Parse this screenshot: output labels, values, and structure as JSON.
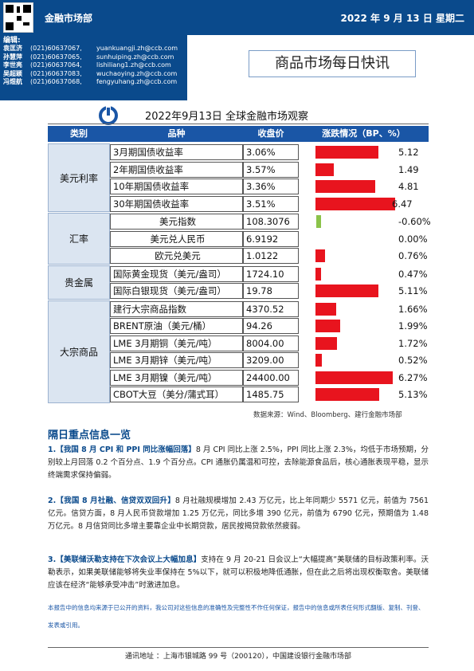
{
  "header": {
    "dept": "金融市场部",
    "date": "2022 年 9 月 13 日  星期二"
  },
  "editors": {
    "label": "编辑:",
    "list": [
      {
        "name": "袁匡济",
        "phone": "(021)60637067,",
        "email": "yuankuangji.zh@ccb.com"
      },
      {
        "name": "孙慧萍",
        "phone": "(021)60637065,",
        "email": "sunhuiping.zh@ccb.com"
      },
      {
        "name": "李世亮",
        "phone": "(021)60637064,",
        "email": "lishiliang1.zh@ccb.com"
      },
      {
        "name": "吴超颖",
        "phone": "(021)60637083,",
        "email": "wuchaoying.zh@ccb.com"
      },
      {
        "name": "冯煜航",
        "phone": "(021)60637068,",
        "email": "fengyuhang.zh@ccb.com"
      }
    ]
  },
  "title": "商品市场每日快讯",
  "table": {
    "title": "2022年9月13日 全球金融市场观察",
    "headers": [
      "类别",
      "品种",
      "收盘价",
      "涨跌情况（BP、%）"
    ],
    "colors": {
      "pos": "#e8141e",
      "neg": "#8bc34a"
    },
    "groups": [
      {
        "cat": "美元利率",
        "rows": [
          {
            "name": "3月期国债收益率",
            "close": "3.06%",
            "chg": "5.12",
            "val": 5.12
          },
          {
            "name": "2年期国债收益率",
            "close": "3.57%",
            "chg": "1.49",
            "val": 1.49
          },
          {
            "name": "10年期国债收益率",
            "close": "3.36%",
            "chg": "4.81",
            "val": 4.81
          },
          {
            "name": "30年期国债收益率",
            "close": "3.51%",
            "chg": "6.47",
            "val": 6.47
          }
        ]
      },
      {
        "cat": "汇率",
        "rows": [
          {
            "name": "美元指数",
            "close": "108.3076",
            "chg": "-0.60%",
            "val": -0.6
          },
          {
            "name": "美元兑人民币",
            "close": "6.9192",
            "chg": "0.00%",
            "val": 0.0
          },
          {
            "name": "欧元兑美元",
            "close": "1.0122",
            "chg": "0.76%",
            "val": 0.76
          }
        ]
      },
      {
        "cat": "贵金属",
        "rows": [
          {
            "name": "国际黄金现货（美元/盎司）",
            "close": "1724.10",
            "chg": "0.47%",
            "val": 0.47
          },
          {
            "name": "国际白银现货（美元/盎司）",
            "close": "19.78",
            "chg": "5.11%",
            "val": 5.11
          }
        ]
      },
      {
        "cat": "大宗商品",
        "rows": [
          {
            "name": "建行大宗商品指数",
            "close": "4370.52",
            "chg": "1.66%",
            "val": 1.66
          },
          {
            "name": "BRENT原油（美元/桶）",
            "close": "94.26",
            "chg": "1.99%",
            "val": 1.99
          },
          {
            "name": "LME 3月期铜（美元/吨）",
            "close": "8004.00",
            "chg": "1.72%",
            "val": 1.72
          },
          {
            "name": "LME 3月期锌（美元/吨）",
            "close": "3209.00",
            "chg": "0.52%",
            "val": 0.52
          },
          {
            "name": "LME 3月期镍（美元/吨）",
            "close": "24400.00",
            "chg": "6.27%",
            "val": 6.27
          },
          {
            "name": "CBOT大豆（美分/蒲式耳）",
            "close": "1485.75",
            "chg": "5.13%",
            "val": 5.13
          }
        ]
      }
    ],
    "source": "数据来源：Wind、Bloomberg、建行金融市场部"
  },
  "news": {
    "heading": "隔日重点信息一览",
    "items": [
      {
        "lead": "1.【我国 8 月 CPI 和 PPI 同比涨幅回落】",
        "body": "8 月 CPI 同比上涨 2.5%，PPI 同比上涨 2.3%，均低于市场预期，分别较上月回落 0.2 个百分点、1.9 个百分点。CPI 通胀仍属温和可控，去除能源食品后，核心通胀表现平稳，显示终端需求保持偏弱。"
      },
      {
        "lead": "2.【我国 8 月社融、信贷双双回升】",
        "body": "8 月社融规模增加 2.43 万亿元，比上年同期少 5571 亿元，前值为 7561 亿元。信贷方面，8 月人民币贷款增加 1.25 万亿元，同比多增 390 亿元，前值为 6790 亿元，预期值为 1.48 万亿元。8 月信贷同比多增主要靠企业中长期贷款，居民按揭贷款依然疲弱。"
      },
      {
        "lead": "3.【美联储沃勒支持在下次会议上大幅加息】",
        "body": "支持在 9 月 20-21 日会议上“大幅提高”美联储的目标政策利率。沃勒表示，如果美联储能够将失业率保持在 5%以下，就可以积极地降低通胀，但在此之后将出现权衡取舍。美联储应该在经济“能够承受冲击”时激进加息。"
      }
    ]
  },
  "disclaimer": "本报告中的信息均来源于已公开的资料，我公司对这些信息的准确性及完整性不作任何保证，报告中的信息或所表任何形式翻版、复制、刊登、发表或引用。",
  "footer": "通讯地址 ：上海市银城路 99 号（200120），中国建设银行金融市场部"
}
